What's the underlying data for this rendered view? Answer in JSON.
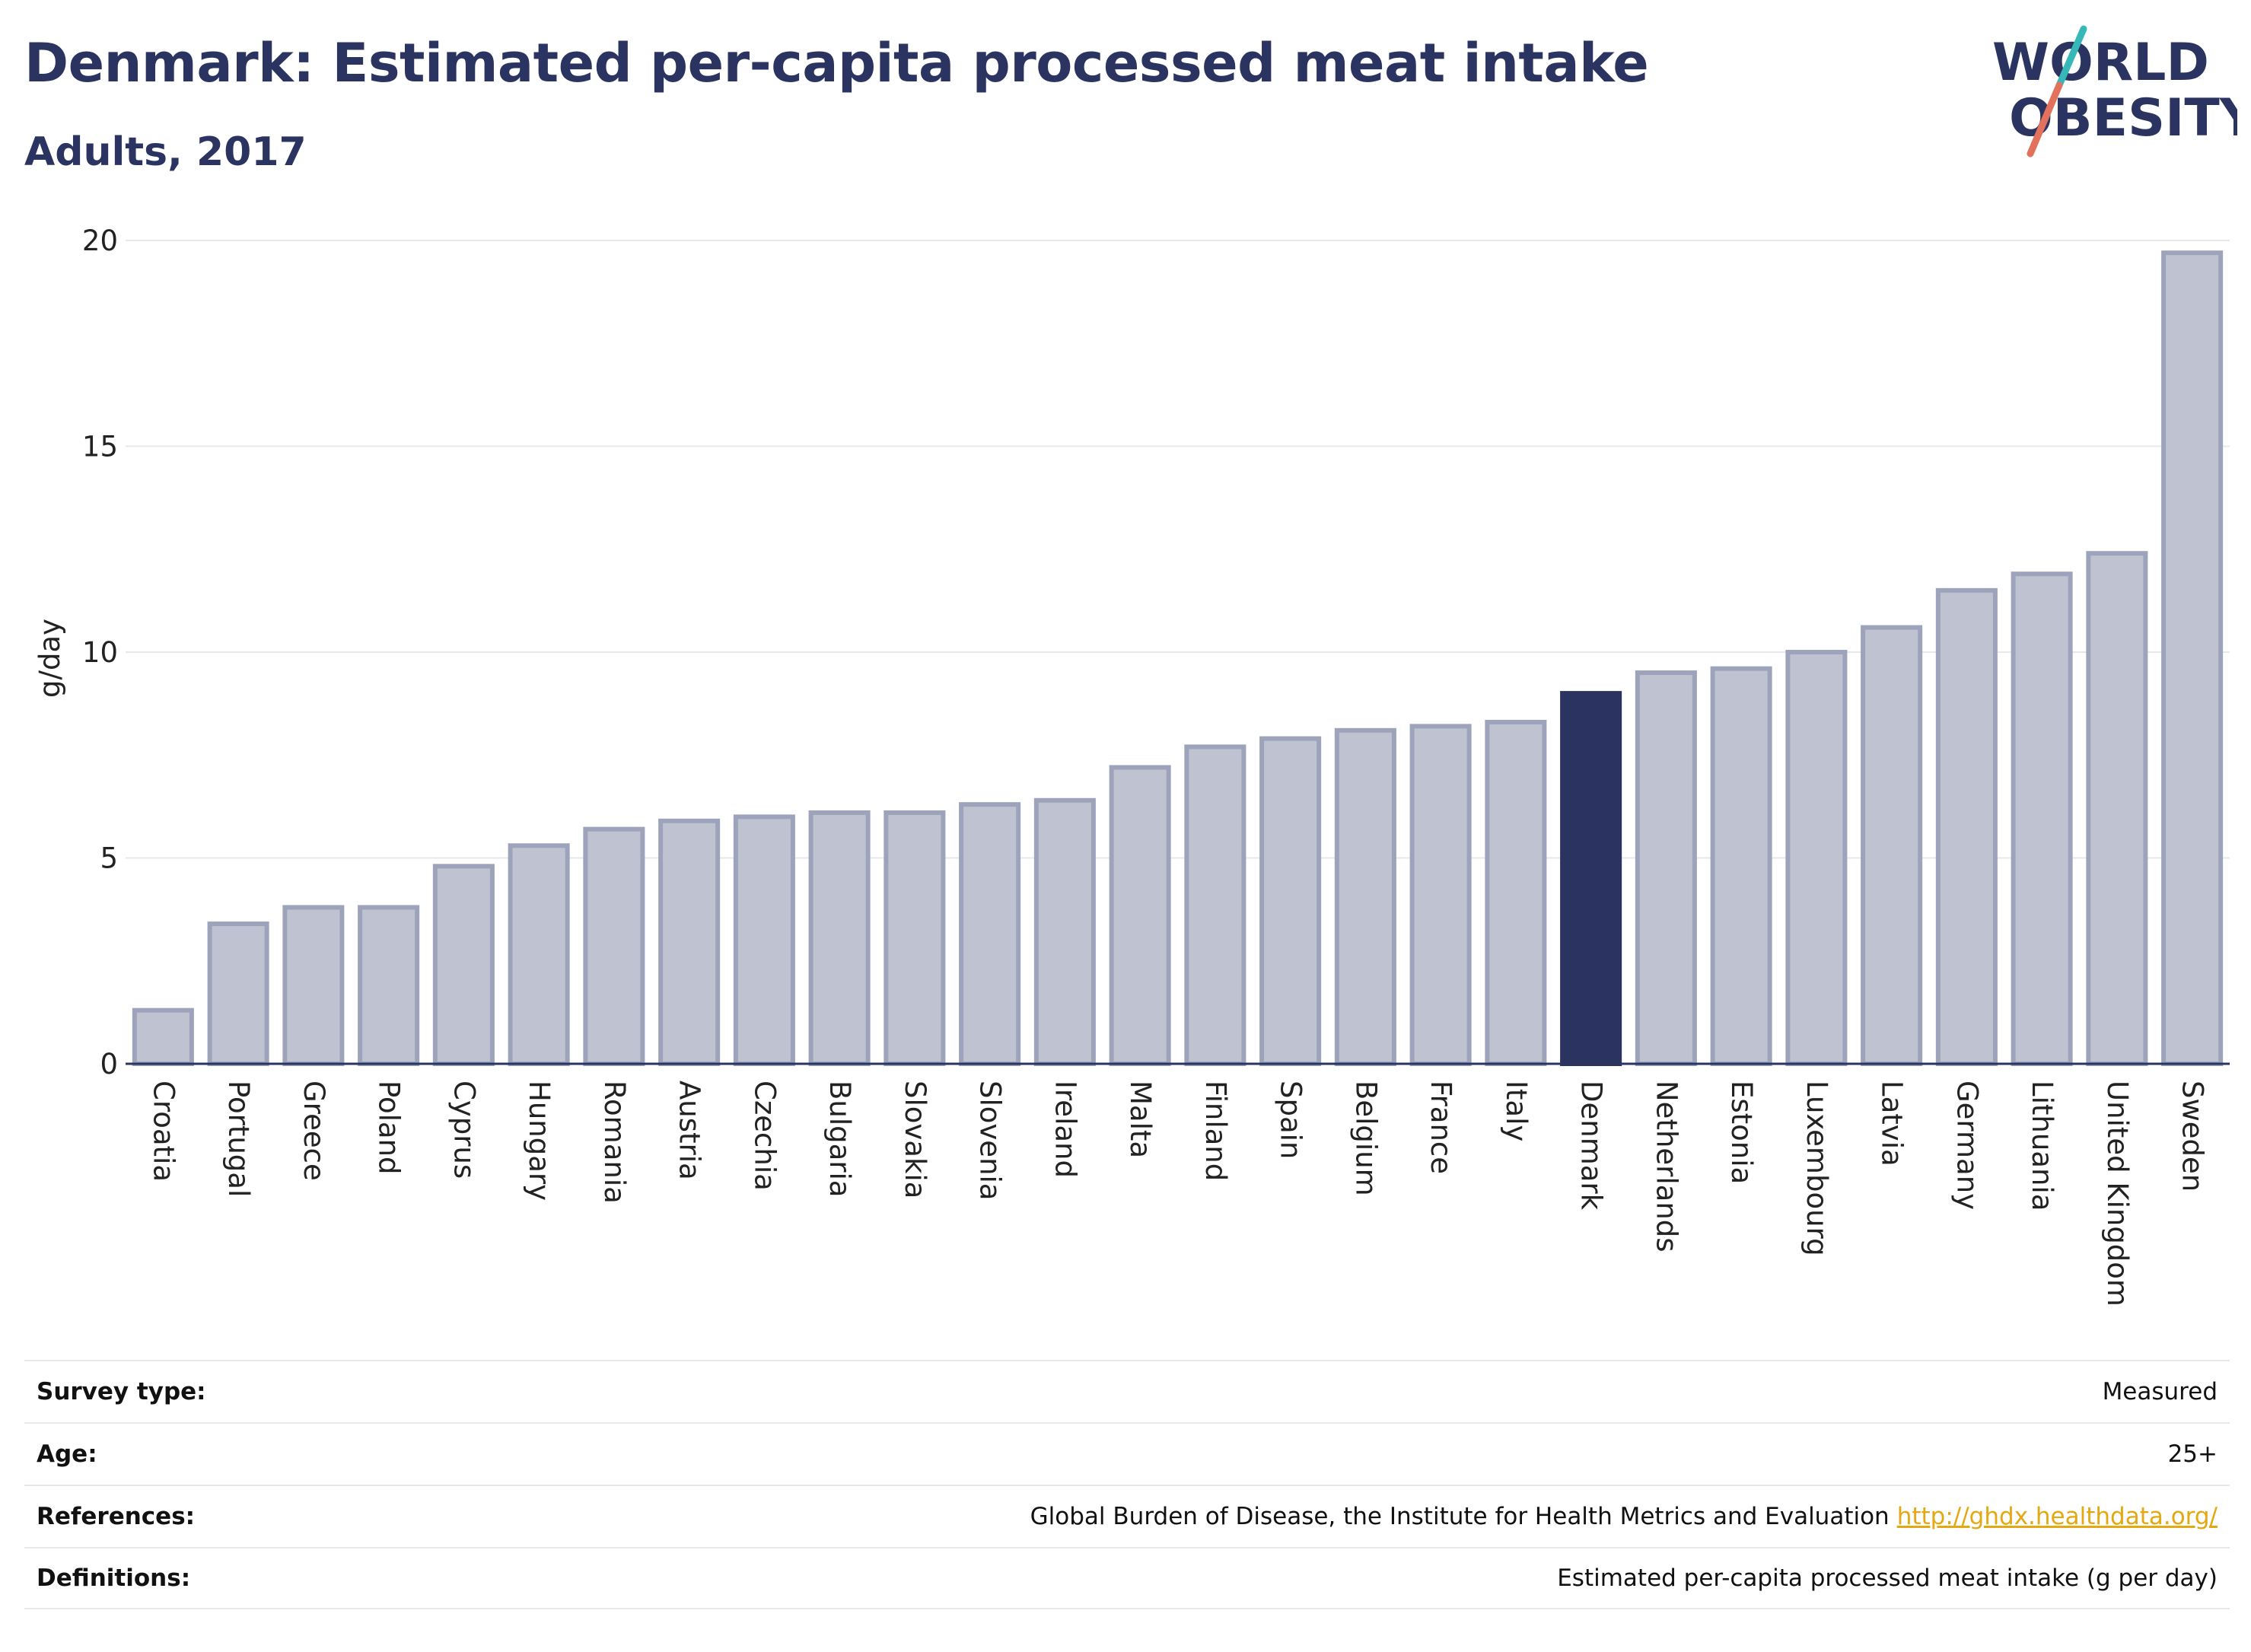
{
  "header": {
    "title": "Denmark: Estimated per-capita processed meat intake",
    "subtitle": "Adults, 2017"
  },
  "logo": {
    "line1": "WORLD",
    "line2": "OBESITY",
    "colors": {
      "text": "#2b3461",
      "slash_top": "#36b8b8",
      "slash_bottom": "#e2725b"
    }
  },
  "chart_data": {
    "type": "bar",
    "ylabel": "g/day",
    "xlabel": "",
    "ylim": [
      0,
      20
    ],
    "yticks": [
      0,
      5,
      10,
      15,
      20
    ],
    "grid": true,
    "highlight": "Denmark",
    "colors": {
      "bar": "#bfc2d0",
      "bar_stroke": "#9ea3bc",
      "highlight": "#2b3461",
      "grid": "#e6e8ee"
    },
    "categories": [
      "Croatia",
      "Portugal",
      "Greece",
      "Poland",
      "Cyprus",
      "Hungary",
      "Romania",
      "Austria",
      "Czechia",
      "Bulgaria",
      "Slovakia",
      "Slovenia",
      "Ireland",
      "Malta",
      "Finland",
      "Spain",
      "Belgium",
      "France",
      "Italy",
      "Denmark",
      "Netherlands",
      "Estonia",
      "Luxembourg",
      "Latvia",
      "Germany",
      "Lithuania",
      "United Kingdom",
      "Sweden"
    ],
    "values": [
      1.3,
      3.4,
      3.8,
      3.8,
      4.8,
      5.3,
      5.7,
      5.9,
      6.0,
      6.1,
      6.1,
      6.3,
      6.4,
      7.2,
      7.7,
      7.9,
      8.1,
      8.2,
      8.3,
      9.0,
      9.5,
      9.6,
      10.0,
      10.6,
      11.5,
      11.9,
      12.4,
      19.7
    ]
  },
  "meta": {
    "survey_type_label": "Survey type:",
    "survey_type_value": "Measured",
    "age_label": "Age:",
    "age_value": "25+",
    "references_label": "References:",
    "references_value": "Global Burden of Disease, the Institute for Health Metrics and Evaluation",
    "references_link": "http://ghdx.healthdata.org/",
    "definitions_label": "Definitions:",
    "definitions_value": "Estimated per-capita processed meat intake (g per day)"
  }
}
